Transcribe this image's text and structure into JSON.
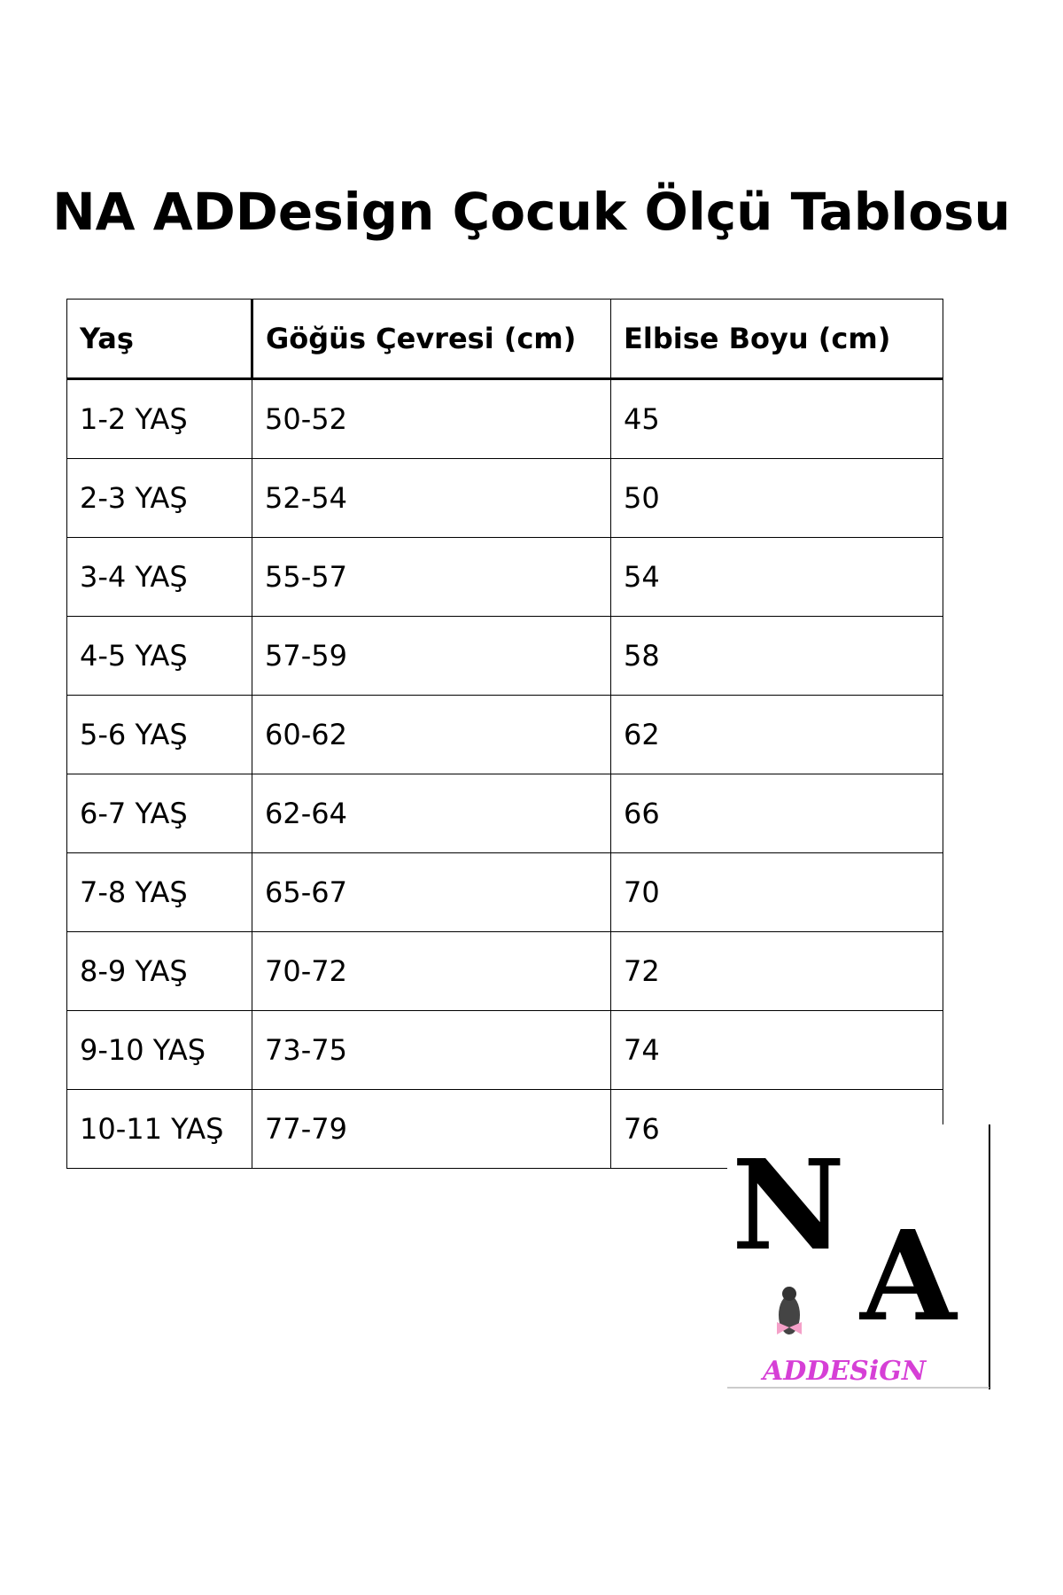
{
  "title": "NA ADDesign Çocuk Ölçü Tablosu",
  "table": {
    "headers": [
      "Yaş",
      "Göğüs Çevresi (cm)",
      "Elbise Boyu (cm)"
    ],
    "rows": [
      [
        "1-2 YAŞ",
        "50-52",
        "45"
      ],
      [
        "2-3 YAŞ",
        "52-54",
        "50"
      ],
      [
        "3-4 YAŞ",
        "55-57",
        "54"
      ],
      [
        "4-5 YAŞ",
        "57-59",
        "58"
      ],
      [
        "5-6 YAŞ",
        "60-62",
        "62"
      ],
      [
        "6-7 YAŞ",
        "62-64",
        "66"
      ],
      [
        "7-8 YAŞ",
        "65-67",
        "70"
      ],
      [
        "8-9 YAŞ",
        "70-72",
        "72"
      ],
      [
        "9-10 YAŞ",
        "73-75",
        "74"
      ],
      [
        "10-11 YAŞ",
        "77-79",
        "76"
      ]
    ]
  },
  "logo": {
    "letters": "NA",
    "wordmark": "ADDESiGN",
    "wordmark_color": "#d63fd6",
    "bow_color": "#f4a0c8"
  }
}
